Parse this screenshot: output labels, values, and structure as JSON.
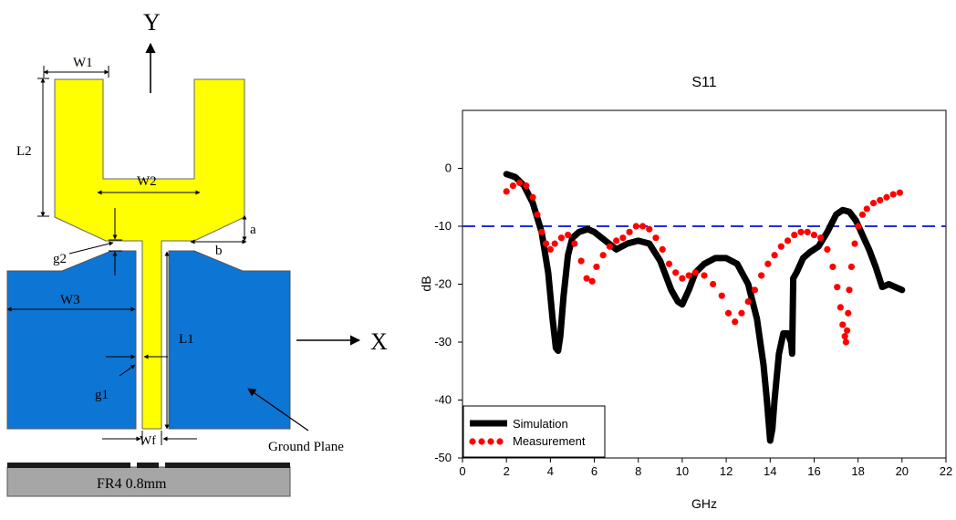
{
  "diagram": {
    "axis_y_label": "Y",
    "axis_x_label": "X",
    "dimensions": {
      "w1": "W1",
      "w2": "W2",
      "w3": "W3",
      "wf": "Wf",
      "l1": "L1",
      "l2": "L2",
      "g1": "g1",
      "g2": "g2",
      "a": "a",
      "b": "b"
    },
    "ground_plane_label": "Ground Plane",
    "substrate_label": "FR4 0.8mm",
    "colors": {
      "patch": "#ffff00",
      "ground": "#0d75d4",
      "substrate": "#a6a6a6",
      "copper": "#1a1a1a"
    }
  },
  "chart_data": {
    "type": "line",
    "title": "S11",
    "xlabel": "GHz",
    "ylabel": "dB",
    "xlim": [
      0,
      22
    ],
    "ylim": [
      -50,
      10
    ],
    "xticks": [
      0,
      2,
      4,
      6,
      8,
      10,
      12,
      14,
      16,
      18,
      20,
      22
    ],
    "yticks": [
      0,
      -10,
      -20,
      -30,
      -40,
      -50
    ],
    "reference_line": {
      "y": -10,
      "color": "#1f2fd8",
      "style": "dashed"
    },
    "legend_position": "bottom-left",
    "series": [
      {
        "name": "Simulation",
        "style": "thick-line",
        "color": "#000000",
        "x": [
          2.0,
          2.4,
          2.8,
          3.2,
          3.6,
          3.9,
          4.1,
          4.25,
          4.35,
          4.45,
          4.6,
          4.8,
          5.0,
          5.3,
          5.7,
          6.0,
          6.5,
          7.0,
          7.5,
          8.0,
          8.5,
          9.0,
          9.5,
          9.8,
          10.0,
          10.3,
          10.6,
          11.0,
          11.5,
          12.0,
          12.5,
          13.0,
          13.4,
          13.7,
          13.85,
          14.0,
          14.1,
          14.2,
          14.4,
          14.6,
          14.8,
          14.95,
          15.0,
          15.05,
          15.2,
          15.5,
          15.8,
          16.2,
          16.6,
          17.0,
          17.3,
          17.6,
          17.9,
          18.2,
          18.5,
          18.8,
          19.1,
          19.4,
          19.7,
          20.0
        ],
        "y": [
          -1,
          -1.5,
          -3,
          -6,
          -11,
          -18,
          -26,
          -31,
          -31.5,
          -29,
          -22,
          -15,
          -12,
          -11,
          -10.5,
          -11,
          -12.5,
          -14,
          -13,
          -12.5,
          -13,
          -16,
          -21,
          -23,
          -23.5,
          -21,
          -18,
          -16.5,
          -15.5,
          -15.5,
          -16.5,
          -20,
          -26,
          -34,
          -40,
          -47,
          -45,
          -40,
          -32,
          -28.5,
          -28.5,
          -30,
          -32,
          -19,
          -18,
          -15.5,
          -14.5,
          -13.5,
          -11,
          -8,
          -7.2,
          -7.5,
          -9,
          -11.5,
          -14,
          -17,
          -20.5,
          -20,
          -20.5,
          -21
        ]
      },
      {
        "name": "Measurement",
        "style": "dotted",
        "color": "#ff0000",
        "x": [
          2.0,
          2.3,
          2.6,
          2.9,
          3.2,
          3.4,
          3.6,
          3.8,
          4.0,
          4.2,
          4.5,
          4.8,
          5.1,
          5.4,
          5.65,
          5.9,
          6.1,
          6.4,
          6.7,
          7.0,
          7.3,
          7.6,
          7.9,
          8.2,
          8.5,
          8.8,
          9.1,
          9.4,
          9.7,
          10.0,
          10.3,
          10.6,
          11.0,
          11.4,
          11.8,
          12.1,
          12.4,
          12.7,
          13.0,
          13.3,
          13.6,
          13.9,
          14.2,
          14.5,
          14.8,
          15.1,
          15.4,
          15.7,
          16.0,
          16.3,
          16.6,
          16.85,
          17.05,
          17.2,
          17.3,
          17.4,
          17.45,
          17.5,
          17.55,
          17.6,
          17.7,
          17.85,
          18.0,
          18.2,
          18.4,
          18.7,
          19.0,
          19.3,
          19.6,
          19.9
        ],
        "y": [
          -4,
          -3,
          -2.5,
          -3,
          -5,
          -8,
          -11,
          -13,
          -14,
          -13,
          -12,
          -11.5,
          -13,
          -16,
          -19,
          -19.5,
          -17,
          -15,
          -13.5,
          -12.5,
          -12,
          -11,
          -10,
          -10,
          -10.5,
          -12,
          -14,
          -16.5,
          -18,
          -19,
          -18.5,
          -18,
          -18.5,
          -20,
          -22,
          -25,
          -26.5,
          -25,
          -23,
          -21,
          -18.5,
          -16.5,
          -15,
          -13.5,
          -12.5,
          -11.5,
          -11,
          -11,
          -11.5,
          -12,
          -14,
          -17,
          -20.5,
          -24,
          -27,
          -29,
          -30,
          -28,
          -25,
          -21,
          -17,
          -13,
          -10,
          -8,
          -7,
          -6,
          -5.5,
          -5,
          -4.5,
          -4.2
        ]
      }
    ]
  }
}
